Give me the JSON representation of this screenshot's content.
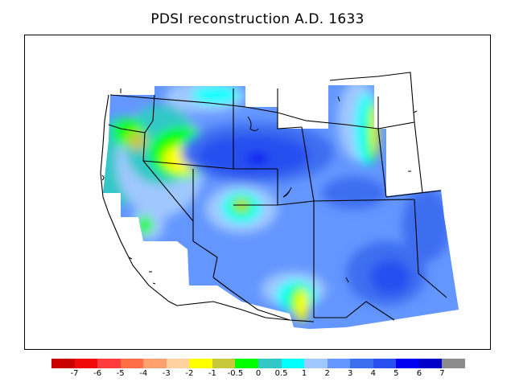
{
  "title": "PDSI reconstruction A.D. 1633",
  "legend": {
    "colors": [
      "#c80000",
      "#f00a0a",
      "#ff3c3c",
      "#ff6e46",
      "#ffa06e",
      "#ffd2a0",
      "#ffff00",
      "#c8c83c",
      "#00ff00",
      "#32c8c8",
      "#00ffff",
      "#a0c8ff",
      "#6496ff",
      "#3c6ef0",
      "#2850f0",
      "#0000f0",
      "#0000c8",
      "#8c8c8c"
    ],
    "labels": [
      "-7",
      "-6",
      "-5",
      "-4",
      "-3",
      "-2",
      "-1",
      "-0.5",
      "0",
      "0.5",
      "1",
      "2",
      "3",
      "4",
      "5",
      "6",
      "7"
    ]
  }
}
